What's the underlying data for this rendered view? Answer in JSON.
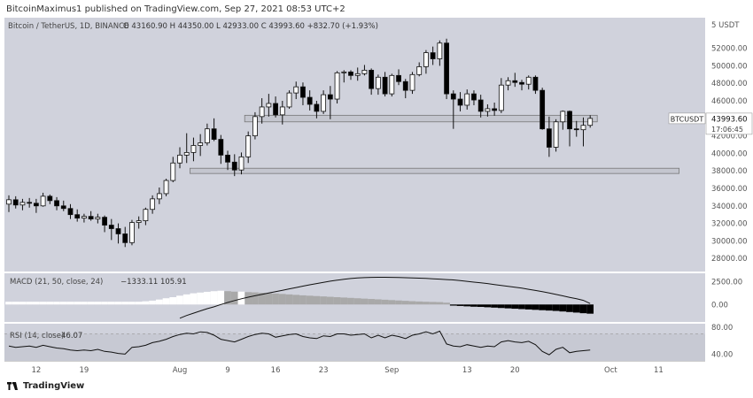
{
  "header": {
    "text": "BitcoinMaximus1 published on TradingView.com, Sep 27, 2021 08:53 UTC+2"
  },
  "footer": {
    "brand": "TradingView"
  },
  "chart_data": [
    {
      "type": "candlestick",
      "title": "Bitcoin / TetherUS, 1D, BINANCE",
      "ohlc_label": "O 43160.90 H 44350.00 L 42933.00 C 43993.60 +832.70 (+1.93%)",
      "symbol": "BTCUSDT",
      "last_price": "43993.60",
      "countdown": "17:06:45",
      "axis_unit_label": "5 USDT",
      "ylim": [
        26500,
        55500
      ],
      "ytick_labels": [
        "28000.00",
        "30000.00",
        "32000.00",
        "34000.00",
        "36000.00",
        "38000.00",
        "40000.00",
        "42000.00",
        "46000.00",
        "48000.00",
        "50000.00",
        "52000.00"
      ],
      "xtick_labels": [
        "12",
        "19",
        "Aug",
        "9",
        "16",
        "23",
        "Sep",
        "13",
        "20",
        "Oct",
        "11"
      ],
      "support_zones": [
        {
          "low": 43600,
          "high": 44350
        },
        {
          "low": 37700,
          "high": 38300
        }
      ],
      "candles": [
        [
          34200,
          35200,
          33300,
          34700
        ],
        [
          34700,
          35100,
          33700,
          34100
        ],
        [
          34100,
          34800,
          33500,
          34400
        ],
        [
          34400,
          34900,
          33800,
          34300
        ],
        [
          34300,
          34800,
          33200,
          34000
        ],
        [
          34000,
          35500,
          33900,
          35100
        ],
        [
          35100,
          35300,
          34200,
          34600
        ],
        [
          34600,
          35000,
          33500,
          34000
        ],
        [
          34000,
          34600,
          33400,
          33700
        ],
        [
          33700,
          34200,
          32500,
          33000
        ],
        [
          33000,
          33600,
          32200,
          32600
        ],
        [
          32600,
          33100,
          32100,
          32800
        ],
        [
          32800,
          33400,
          32300,
          32500
        ],
        [
          32500,
          33100,
          32000,
          32700
        ],
        [
          32700,
          32900,
          31000,
          31800
        ],
        [
          31800,
          32500,
          30100,
          31400
        ],
        [
          31400,
          32000,
          29700,
          30800
        ],
        [
          30800,
          31600,
          29300,
          29800
        ],
        [
          29800,
          32400,
          29500,
          32100
        ],
        [
          32100,
          32800,
          31400,
          32300
        ],
        [
          32300,
          33800,
          31800,
          33600
        ],
        [
          33600,
          35200,
          33100,
          34800
        ],
        [
          34800,
          36100,
          34200,
          35400
        ],
        [
          35400,
          37100,
          35100,
          36900
        ],
        [
          36900,
          39600,
          36700,
          38900
        ],
        [
          38900,
          40700,
          38300,
          39800
        ],
        [
          39800,
          42300,
          38900,
          40100
        ],
        [
          40100,
          41800,
          39100,
          40900
        ],
        [
          40900,
          42200,
          39700,
          41200
        ],
        [
          41200,
          43400,
          40900,
          42800
        ],
        [
          42800,
          44000,
          41400,
          41600
        ],
        [
          41600,
          42100,
          38800,
          39800
        ],
        [
          39800,
          40300,
          38100,
          39000
        ],
        [
          39000,
          39900,
          37400,
          38100
        ],
        [
          38100,
          40100,
          37600,
          39600
        ],
        [
          39600,
          42500,
          38900,
          42000
        ],
        [
          42000,
          44700,
          41600,
          44200
        ],
        [
          44200,
          46300,
          43400,
          45300
        ],
        [
          45300,
          46800,
          44200,
          45700
        ],
        [
          45700,
          46500,
          44100,
          44400
        ],
        [
          44400,
          46000,
          43300,
          45300
        ],
        [
          45300,
          47200,
          45100,
          46900
        ],
        [
          46900,
          48200,
          46200,
          47600
        ],
        [
          47600,
          48100,
          45500,
          46400
        ],
        [
          46400,
          47200,
          44900,
          45600
        ],
        [
          45600,
          46000,
          44000,
          44800
        ],
        [
          44800,
          47200,
          44500,
          46700
        ],
        [
          46700,
          47700,
          43900,
          46200
        ],
        [
          46200,
          49400,
          45700,
          49200
        ],
        [
          49200,
          49500,
          48100,
          49300
        ],
        [
          49300,
          49500,
          48400,
          48900
        ],
        [
          48900,
          49800,
          48300,
          49100
        ],
        [
          49100,
          50100,
          48900,
          49500
        ],
        [
          49500,
          49700,
          46700,
          47400
        ],
        [
          47400,
          49000,
          46700,
          48700
        ],
        [
          48700,
          49300,
          46500,
          46800
        ],
        [
          46800,
          49100,
          46500,
          48900
        ],
        [
          48900,
          49600,
          47800,
          48200
        ],
        [
          48200,
          48500,
          46300,
          47200
        ],
        [
          47200,
          49300,
          46800,
          49000
        ],
        [
          49000,
          50400,
          48800,
          49900
        ],
        [
          49900,
          51800,
          49100,
          51500
        ],
        [
          51500,
          52200,
          50100,
          50800
        ],
        [
          50800,
          52900,
          50000,
          52600
        ],
        [
          52600,
          53100,
          46200,
          46800
        ],
        [
          46800,
          47200,
          42800,
          46200
        ],
        [
          46200,
          47000,
          44800,
          45500
        ],
        [
          45500,
          47300,
          45000,
          46800
        ],
        [
          46800,
          47200,
          45500,
          46100
        ],
        [
          46100,
          46700,
          44100,
          44800
        ],
        [
          44800,
          45600,
          44200,
          45100
        ],
        [
          45100,
          45800,
          44300,
          44900
        ],
        [
          44900,
          48600,
          44600,
          47800
        ],
        [
          47800,
          48700,
          47200,
          48300
        ],
        [
          48300,
          49200,
          47600,
          48100
        ],
        [
          48100,
          48400,
          47200,
          47900
        ],
        [
          47900,
          48900,
          47300,
          48700
        ],
        [
          48700,
          48900,
          46800,
          47200
        ],
        [
          47200,
          47500,
          42700,
          42800
        ],
        [
          42800,
          44200,
          39600,
          40700
        ],
        [
          40700,
          43900,
          40200,
          43600
        ],
        [
          43600,
          44900,
          42700,
          44800
        ],
        [
          44800,
          44900,
          40800,
          42800
        ],
        [
          42800,
          43700,
          41900,
          42700
        ],
        [
          42700,
          44100,
          40800,
          43200
        ],
        [
          43200,
          44350,
          42933,
          43993.6
        ]
      ]
    },
    {
      "type": "histogram+line",
      "title": "MACD (21, 50, close, 24)",
      "values_label": "−1333.11  105.91",
      "ytick_labels": [
        "2500.00",
        "0.00"
      ],
      "ylim": [
        -1900,
        3400
      ],
      "histogram": [
        300,
        300,
        300,
        300,
        300,
        300,
        300,
        300,
        300,
        300,
        300,
        300,
        300,
        300,
        300,
        300,
        300,
        300,
        300,
        300,
        350,
        420,
        540,
        680,
        800,
        960,
        1100,
        1220,
        1300,
        1380,
        1450,
        1500,
        1450,
        1400,
        1400,
        1350,
        1320,
        1280,
        1240,
        1200,
        1150,
        1100,
        1050,
        1000,
        960,
        920,
        880,
        840,
        800,
        760,
        720,
        680,
        640,
        600,
        560,
        520,
        480,
        440,
        400,
        360,
        330,
        300,
        280,
        260,
        200,
        -120,
        -160,
        -200,
        -240,
        -260,
        -300,
        -340,
        -380,
        -420,
        -460,
        -500,
        -540,
        -580,
        -620,
        -660,
        -700,
        -760,
        -820,
        -880,
        -950,
        -1000
      ],
      "line": [
        null,
        null,
        null,
        null,
        null,
        null,
        null,
        null,
        null,
        null,
        null,
        null,
        null,
        null,
        null,
        null,
        null,
        null,
        null,
        null,
        null,
        null,
        null,
        null,
        null,
        -1500,
        -1200,
        -950,
        -700,
        -450,
        -250,
        0,
        220,
        430,
        620,
        800,
        950,
        1100,
        1250,
        1400,
        1550,
        1700,
        1850,
        2000,
        2150,
        2280,
        2420,
        2540,
        2650,
        2750,
        2830,
        2890,
        2930,
        2960,
        2970,
        2970,
        2960,
        2940,
        2920,
        2900,
        2870,
        2840,
        2800,
        2760,
        2720,
        2680,
        2600,
        2520,
        2440,
        2360,
        2280,
        2180,
        2080,
        1980,
        1880,
        1780,
        1660,
        1530,
        1400,
        1260,
        1100,
        940,
        780,
        620,
        450,
        106
      ]
    },
    {
      "type": "line",
      "title": "RSI (14, close)",
      "value_label": "46.07",
      "ytick_labels": [
        "80.00",
        "40.00"
      ],
      "ylim": [
        30,
        85
      ],
      "values": [
        52,
        50,
        51,
        52,
        50,
        53,
        51,
        49,
        48,
        46,
        45,
        46,
        45,
        47,
        44,
        43,
        41,
        40,
        50,
        51,
        53,
        57,
        59,
        62,
        66,
        69,
        71,
        70,
        73,
        72,
        68,
        62,
        60,
        58,
        62,
        66,
        69,
        71,
        70,
        65,
        67,
        69,
        70,
        66,
        64,
        63,
        67,
        66,
        70,
        70,
        68,
        69,
        70,
        64,
        68,
        64,
        68,
        66,
        63,
        68,
        70,
        73,
        70,
        74,
        55,
        52,
        51,
        54,
        52,
        50,
        52,
        51,
        58,
        60,
        58,
        57,
        59,
        54,
        44,
        39,
        47,
        50,
        42,
        44,
        45,
        46
      ]
    }
  ],
  "colors": {
    "background": "#d0d2dc",
    "candle_up": "#ffffff",
    "candle_down": "#000000",
    "zone_fill": "#c4c6cf",
    "zone_stroke": "#777777",
    "macd_pos_strong": "#ffffff",
    "macd_pos_weak": "#a9a9a9",
    "macd_neg_strong": "#000000",
    "macd_neg_weak": "#6e6e6e",
    "label_bg": "#ffffff"
  }
}
